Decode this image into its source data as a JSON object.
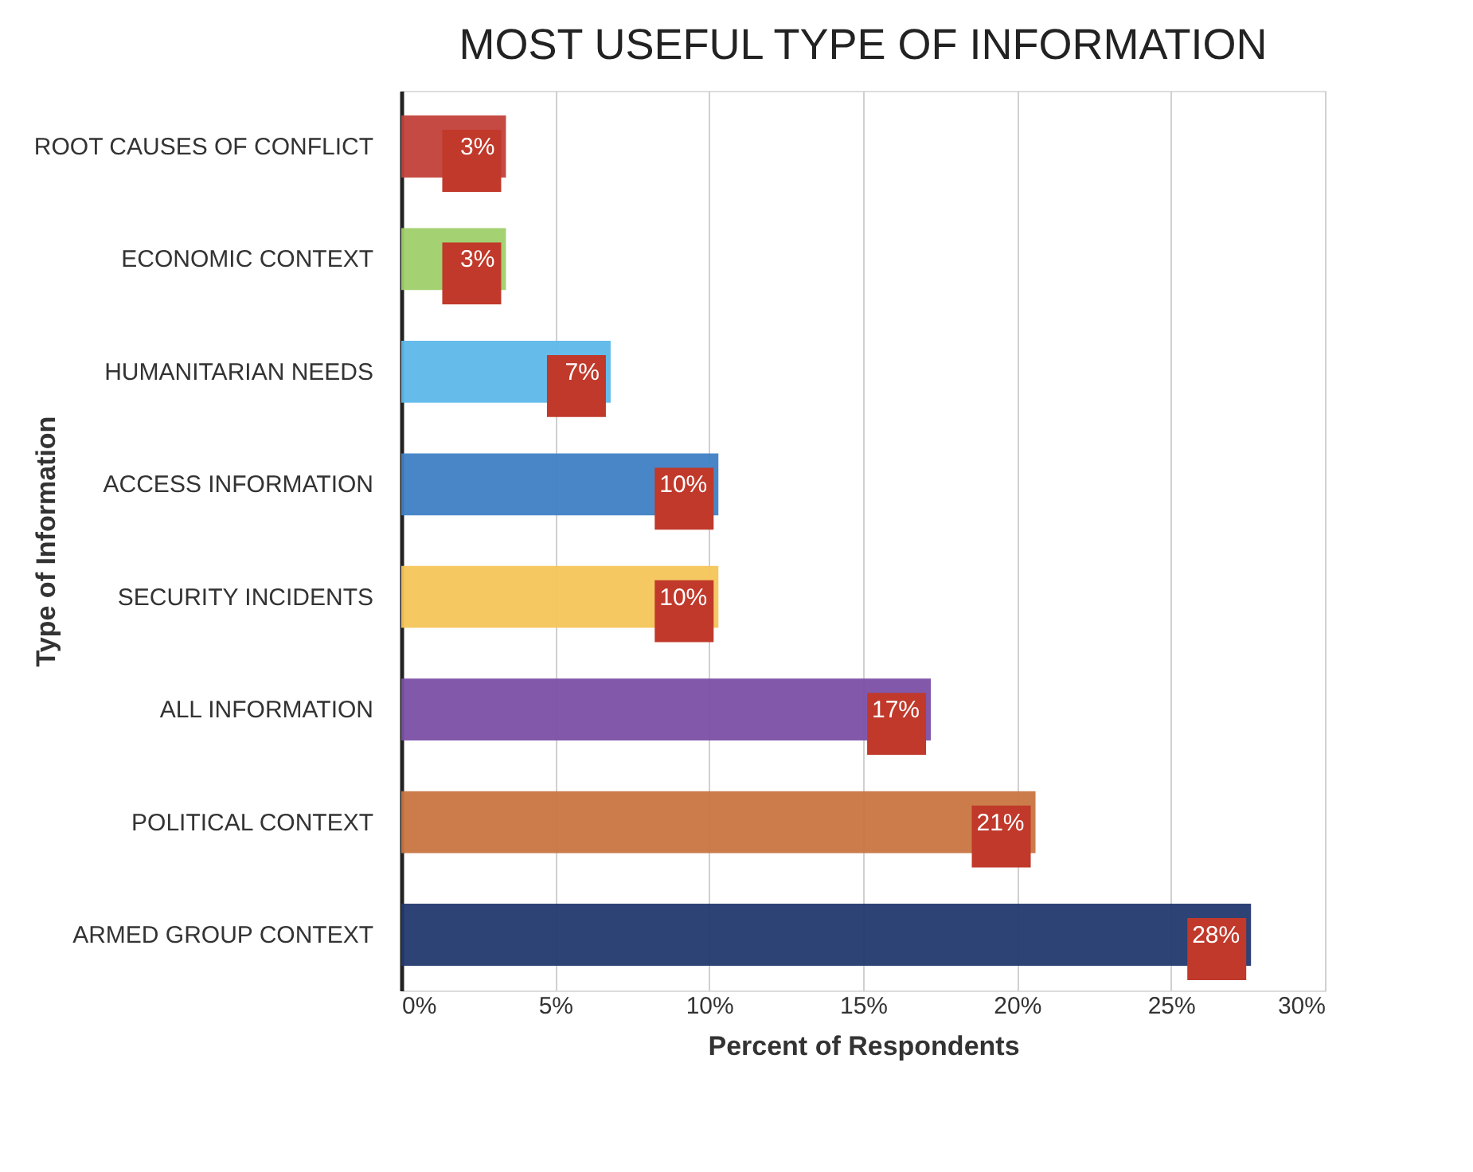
{
  "chart_data": {
    "type": "bar",
    "orientation": "horizontal",
    "title": "MOST USEFUL TYPE OF INFORMATION",
    "xlabel": "Percent of Respondents",
    "ylabel": "Type of Information",
    "categories": [
      "ROOT CAUSES OF CONFLICT",
      "ECONOMIC CONTEXT",
      "HUMANITARIAN NEEDS",
      "ACCESS INFORMATION",
      "SECURITY INCIDENTS",
      "ALL INFORMATION",
      "POLITICAL CONTEXT",
      "ARMED GROUP CONTEXT"
    ],
    "values": [
      3.4,
      3.4,
      6.8,
      10.3,
      10.3,
      17.2,
      20.6,
      27.6
    ],
    "colors": [
      "#c2403a",
      "#9fd06b",
      "#5db8ea",
      "#3f7fc4",
      "#f5c55a",
      "#7b4fa6",
      "#c87540",
      "#22386e"
    ],
    "value_labels": [
      "3%",
      "3%",
      "7%",
      "10%",
      "10%",
      "17%",
      "21%",
      "28%"
    ],
    "xlim": [
      0,
      30
    ],
    "xticks": [
      {
        "value": 0,
        "label": "0%"
      },
      {
        "value": 5,
        "label": "5%"
      },
      {
        "value": 10,
        "label": "10%"
      },
      {
        "value": 15,
        "label": "15%"
      },
      {
        "value": 20,
        "label": "20%"
      },
      {
        "value": 25,
        "label": "25%"
      },
      {
        "value": 30,
        "label": "30%"
      }
    ],
    "grid": "x"
  }
}
